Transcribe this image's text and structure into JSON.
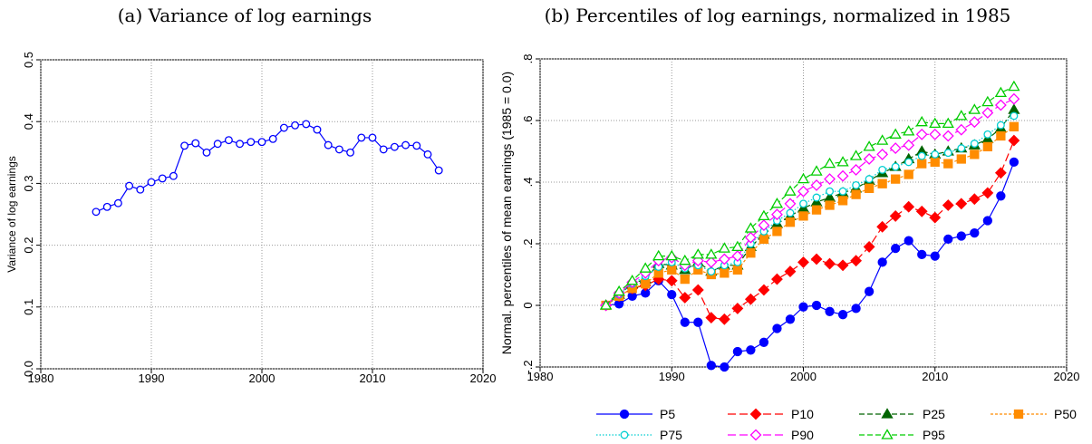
{
  "chart_data": [
    {
      "type": "line",
      "title": "(a) Variance of log earnings",
      "y_label": "Variance of log earnings",
      "x": [
        1985,
        1986,
        1987,
        1988,
        1989,
        1990,
        1991,
        1992,
        1993,
        1994,
        1995,
        1996,
        1997,
        1998,
        1999,
        2000,
        2001,
        2002,
        2003,
        2004,
        2005,
        2006,
        2007,
        2008,
        2009,
        2010,
        2011,
        2012,
        2013,
        2014,
        2015,
        2016
      ],
      "values": [
        0.254,
        0.262,
        0.268,
        0.296,
        0.29,
        0.302,
        0.308,
        0.312,
        0.361,
        0.365,
        0.35,
        0.364,
        0.37,
        0.364,
        0.367,
        0.367,
        0.372,
        0.39,
        0.394,
        0.396,
        0.387,
        0.362,
        0.355,
        0.35,
        0.374,
        0.374,
        0.355,
        0.359,
        0.362,
        0.361,
        0.347,
        0.321
      ],
      "color": "#0000ff",
      "marker": "circle",
      "filled": false,
      "line_style": "solid",
      "xlim": [
        1980,
        2020
      ],
      "xticks": [
        1980,
        1990,
        2000,
        2010,
        2020
      ],
      "ylim": [
        0,
        0.5
      ],
      "yticks": [
        {
          "value": 0,
          "label": "0.0"
        },
        0.1,
        0.2,
        0.3,
        0.4,
        0.5
      ],
      "grid": true
    },
    {
      "type": "line",
      "title": "(b) Percentiles of log earnings, normalized in 1985",
      "y_label": "Normal. percentiles of mean earnings (1985 = 0.0)",
      "x": [
        1985,
        1986,
        1987,
        1988,
        1989,
        1990,
        1991,
        1992,
        1993,
        1994,
        1995,
        1996,
        1997,
        1998,
        1999,
        2000,
        2001,
        2002,
        2003,
        2004,
        2005,
        2006,
        2007,
        2008,
        2009,
        2010,
        2011,
        2012,
        2013,
        2014,
        2015,
        2016
      ],
      "series": [
        {
          "name": "P5",
          "color": "#0000ff",
          "marker": "circle",
          "filled": true,
          "line_style": "solid",
          "values": [
            0,
            0.005,
            0.03,
            0.04,
            0.08,
            0.035,
            -0.055,
            -0.055,
            -0.195,
            -0.2,
            -0.15,
            -0.145,
            -0.12,
            -0.075,
            -0.045,
            -0.005,
            0.0,
            -0.02,
            -0.03,
            -0.01,
            0.045,
            0.14,
            0.185,
            0.21,
            0.165,
            0.16,
            0.215,
            0.225,
            0.235,
            0.275,
            0.355,
            0.465
          ]
        },
        {
          "name": "P10",
          "color": "#ff0000",
          "marker": "diamond",
          "filled": true,
          "line_style": "longdash",
          "values": [
            0,
            0.03,
            0.055,
            0.065,
            0.085,
            0.08,
            0.025,
            0.05,
            -0.04,
            -0.045,
            -0.01,
            0.02,
            0.05,
            0.085,
            0.11,
            0.14,
            0.15,
            0.135,
            0.13,
            0.145,
            0.19,
            0.255,
            0.29,
            0.32,
            0.305,
            0.285,
            0.325,
            0.33,
            0.345,
            0.365,
            0.43,
            0.535
          ]
        },
        {
          "name": "P25",
          "color": "#006400",
          "marker": "triangle",
          "filled": true,
          "line_style": "dashed",
          "values": [
            0,
            0.035,
            0.07,
            0.085,
            0.135,
            0.13,
            0.115,
            0.14,
            0.11,
            0.13,
            0.13,
            0.19,
            0.23,
            0.265,
            0.29,
            0.315,
            0.335,
            0.35,
            0.365,
            0.38,
            0.405,
            0.43,
            0.45,
            0.475,
            0.5,
            0.49,
            0.5,
            0.51,
            0.52,
            0.54,
            0.575,
            0.635
          ]
        },
        {
          "name": "P50",
          "color": "#ff8c00",
          "marker": "square",
          "filled": true,
          "line_style": "shortdash",
          "values": [
            0,
            0.03,
            0.055,
            0.07,
            0.105,
            0.115,
            0.085,
            0.115,
            0.1,
            0.105,
            0.115,
            0.17,
            0.215,
            0.24,
            0.27,
            0.29,
            0.31,
            0.325,
            0.34,
            0.36,
            0.38,
            0.395,
            0.41,
            0.425,
            0.46,
            0.465,
            0.46,
            0.475,
            0.49,
            0.515,
            0.55,
            0.58
          ]
        },
        {
          "name": "P75",
          "color": "#00ced1",
          "marker": "circle",
          "filled": false,
          "line_style": "dotted",
          "values": [
            0,
            0.035,
            0.07,
            0.095,
            0.125,
            0.14,
            0.12,
            0.13,
            0.11,
            0.13,
            0.14,
            0.2,
            0.24,
            0.275,
            0.3,
            0.33,
            0.35,
            0.37,
            0.37,
            0.39,
            0.41,
            0.44,
            0.45,
            0.465,
            0.485,
            0.49,
            0.495,
            0.51,
            0.525,
            0.555,
            0.585,
            0.615
          ]
        },
        {
          "name": "P90",
          "color": "#ff00ff",
          "marker": "diamond",
          "filled": false,
          "line_style": "longdash",
          "values": [
            0,
            0.04,
            0.075,
            0.105,
            0.145,
            0.155,
            0.13,
            0.145,
            0.14,
            0.15,
            0.16,
            0.22,
            0.26,
            0.295,
            0.33,
            0.37,
            0.39,
            0.41,
            0.42,
            0.44,
            0.475,
            0.49,
            0.51,
            0.52,
            0.555,
            0.555,
            0.55,
            0.57,
            0.595,
            0.625,
            0.65,
            0.67
          ]
        },
        {
          "name": "P95",
          "color": "#00cc00",
          "marker": "triangle",
          "filled": false,
          "line_style": "dashed",
          "values": [
            0,
            0.045,
            0.08,
            0.12,
            0.16,
            0.16,
            0.145,
            0.165,
            0.165,
            0.185,
            0.19,
            0.25,
            0.29,
            0.33,
            0.37,
            0.41,
            0.435,
            0.46,
            0.465,
            0.485,
            0.515,
            0.535,
            0.555,
            0.565,
            0.595,
            0.59,
            0.59,
            0.615,
            0.635,
            0.66,
            0.69,
            0.71
          ]
        }
      ],
      "xlim": [
        1980,
        2020
      ],
      "xticks": [
        1980,
        1990,
        2000,
        2010,
        2020
      ],
      "ylim": [
        -0.2,
        0.8
      ],
      "yticks": [
        {
          "value": -0.2,
          "label": "-.2"
        },
        0,
        {
          "value": 0.2,
          "label": ".2"
        },
        {
          "value": 0.4,
          "label": ".4"
        },
        {
          "value": 0.6,
          "label": ".6"
        },
        {
          "value": 0.8,
          "label": ".8"
        }
      ],
      "grid": true
    }
  ]
}
